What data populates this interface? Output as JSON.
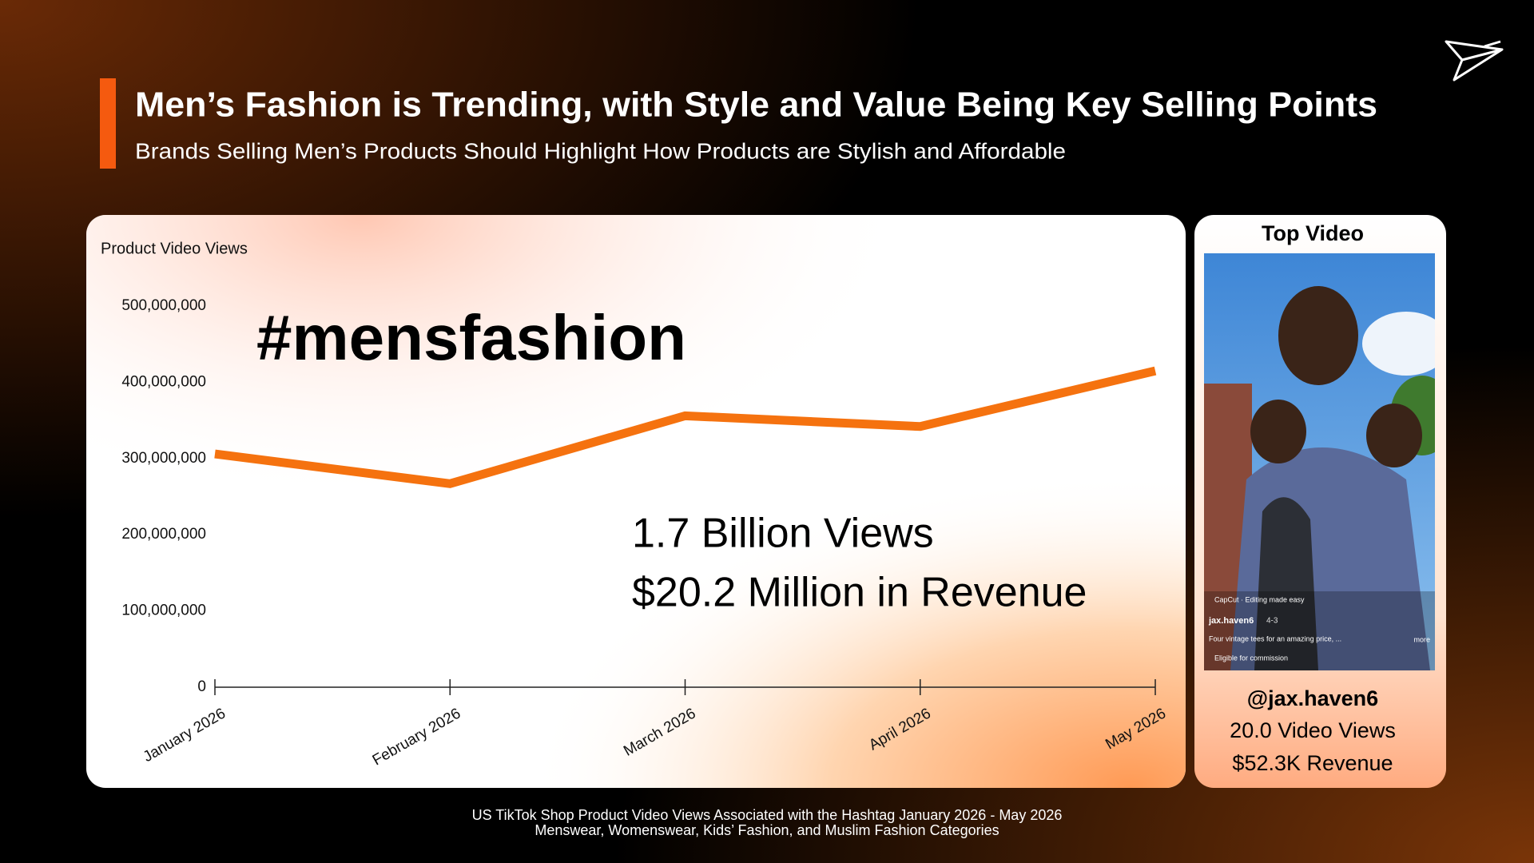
{
  "header": {
    "title": "Men’s Fashion is Trending, with Style and Value Being Key Selling Points",
    "subtitle": "Brands Selling Men’s Products Should Highlight How Products are Stylish and Affordable"
  },
  "chart_data": {
    "type": "line",
    "y_label": "Product Video Views",
    "categories": [
      "January 2026",
      "February 2026",
      "March 2026",
      "April 2026",
      "May 2026"
    ],
    "values": [
      306000000,
      267000000,
      356000000,
      342000000,
      415000000
    ],
    "color": "#f5720f",
    "ylim": [
      0,
      500000000
    ],
    "yticks": [
      0,
      {
        "value": 100000000,
        "label": "100,000,000"
      },
      {
        "value": 200000000,
        "label": "200,000,000"
      },
      {
        "value": 300000000,
        "label": "300,000,000"
      },
      {
        "value": 400000000,
        "label": "400,000,000"
      },
      {
        "value": 500000000,
        "label": "500,000,000"
      }
    ],
    "grid": false,
    "annotations": [
      "#mensfashion",
      "1.7 Billion Views",
      "$20.2 Million in Revenue"
    ]
  },
  "top_video": {
    "title": "Top Video",
    "handle": "@jax.haven6",
    "views": "20.0 Video Views",
    "revenue": "$52.3K Revenue",
    "overlay": [
      "CapCut · Editing made easy",
      "jax.haven6",
      "4-3",
      "Four vintage tees for an amazing price, ...",
      "more",
      "Eligible for commission"
    ]
  },
  "footnote": [
    "US TikTok Shop Product Video Views Associated with the Hashtag January 2026 - May 2026",
    "Menswear, Womenswear, Kids’ Fashion, and Muslim Fashion Categories"
  ]
}
